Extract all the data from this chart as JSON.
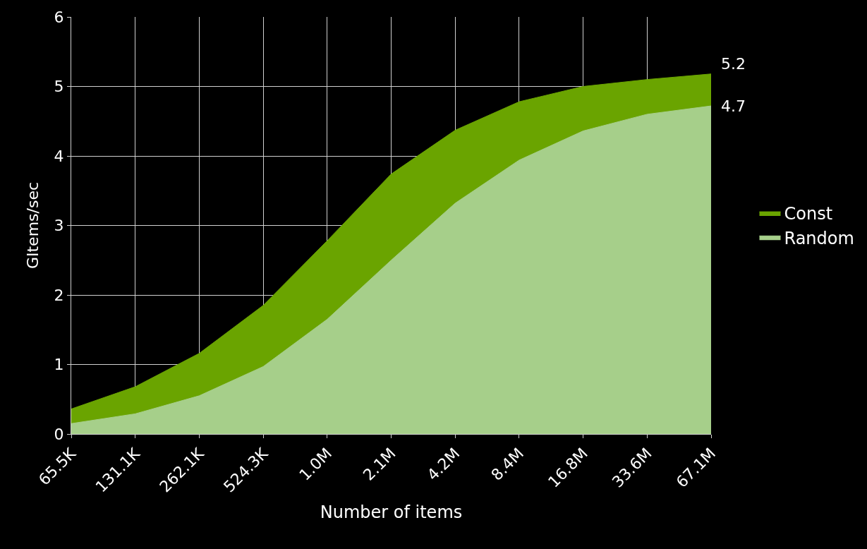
{
  "chart_data": {
    "type": "area",
    "xlabel": "Number of items",
    "ylabel": "GItems/sec",
    "categories": [
      "65.5K",
      "131.1K",
      "262.1K",
      "524.3K",
      "1.0M",
      "2.1M",
      "4.2M",
      "8.4M",
      "16.8M",
      "33.6M",
      "67.1M"
    ],
    "series": [
      {
        "name": "Const",
        "color": "#6aa400",
        "values": [
          0.36,
          0.68,
          1.16,
          1.85,
          2.78,
          3.74,
          4.37,
          4.78,
          5.0,
          5.1,
          5.18
        ],
        "value_labels": [
          null,
          null,
          null,
          null,
          null,
          null,
          null,
          null,
          null,
          null,
          "5.2"
        ]
      },
      {
        "name": "Random",
        "color": "#a6cf8a",
        "values": [
          0.15,
          0.29,
          0.55,
          0.97,
          1.65,
          2.5,
          3.32,
          3.94,
          4.36,
          4.6,
          4.72
        ],
        "value_labels": [
          null,
          null,
          null,
          null,
          null,
          null,
          null,
          null,
          null,
          null,
          "4.7"
        ]
      }
    ],
    "ylim": [
      0,
      6
    ],
    "yticks": [
      0,
      1,
      2,
      3,
      4,
      5,
      6
    ],
    "grid": true,
    "legend": "right"
  }
}
